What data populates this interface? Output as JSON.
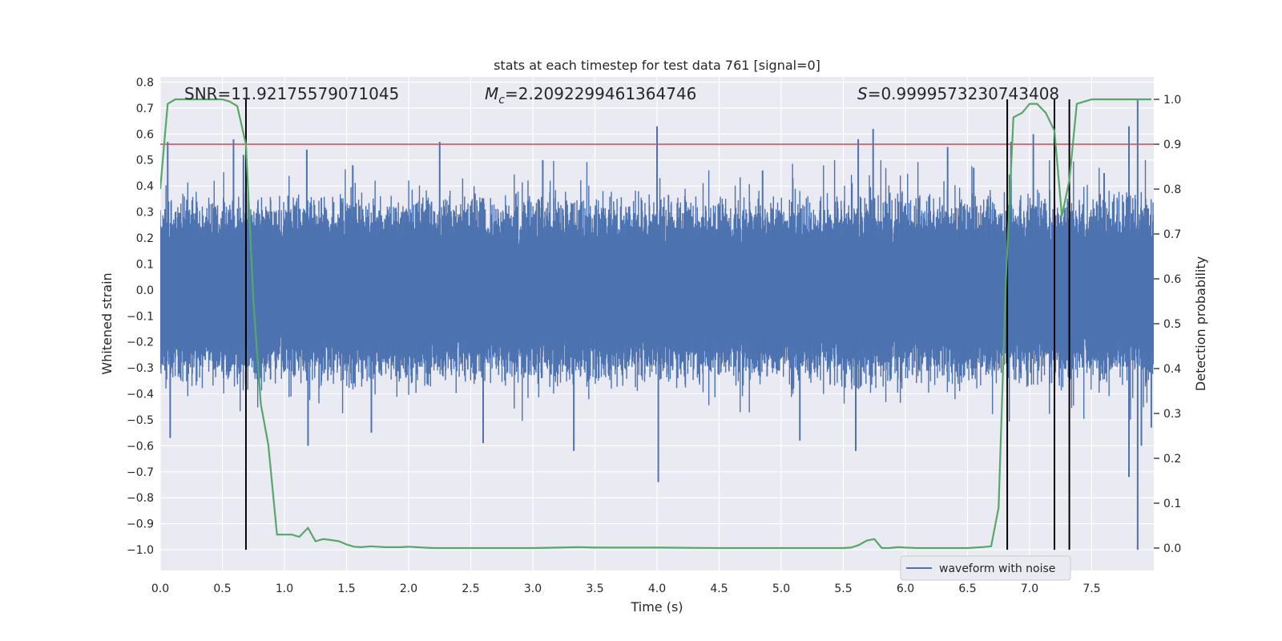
{
  "chart_data": {
    "type": "line",
    "title": "stats at each timestep for test data 761 [signal=0]",
    "xlabel": "Time (s)",
    "ylabel_left": "Whitened strain",
    "ylabel_right": "Detection probability",
    "xlim": [
      0.0,
      8.0
    ],
    "ylim_left": [
      -1.08,
      0.82
    ],
    "ylim_right": [
      -0.05,
      1.05
    ],
    "x_ticks": [
      0.0,
      0.5,
      1.0,
      1.5,
      2.0,
      2.5,
      3.0,
      3.5,
      4.0,
      4.5,
      5.0,
      5.5,
      6.0,
      6.5,
      7.0,
      7.5
    ],
    "x_tick_labels": [
      "0.0",
      "0.5",
      "1.0",
      "1.5",
      "2.0",
      "2.5",
      "3.0",
      "3.5",
      "4.0",
      "4.5",
      "5.0",
      "5.5",
      "6.0",
      "6.5",
      "7.0",
      "7.5"
    ],
    "y_left_ticks": [
      0.8,
      0.7,
      0.6,
      0.5,
      0.4,
      0.3,
      0.2,
      0.1,
      0.0,
      -0.1,
      -0.2,
      -0.3,
      -0.4,
      -0.5,
      -0.6,
      -0.7,
      -0.8,
      -0.9,
      -1.0
    ],
    "y_left_tick_labels": [
      "0.8",
      "0.7",
      "0.6",
      "0.5",
      "0.4",
      "0.3",
      "0.2",
      "0.1",
      "0.0",
      "−0.1",
      "−0.2",
      "−0.3",
      "−0.4",
      "−0.5",
      "−0.6",
      "−0.7",
      "−0.8",
      "−0.9",
      "−1.0"
    ],
    "y_right_ticks": [
      1.0,
      0.9,
      0.8,
      0.7,
      0.6,
      0.5,
      0.4,
      0.3,
      0.2,
      0.1,
      0.0
    ],
    "y_right_tick_labels": [
      "1.0",
      "0.9",
      "0.8",
      "0.7",
      "0.6",
      "0.5",
      "0.4",
      "0.3",
      "0.2",
      "0.1",
      "0.0"
    ],
    "grid": true,
    "background": "#eaeaf2",
    "annotations": {
      "snr": "SNR=11.92175579071045",
      "mc": "=2.2092299461364746",
      "s": "=0.9999573230743408"
    },
    "legend": {
      "label": "waveform with noise",
      "placement": "lower-right"
    },
    "threshold": {
      "axis": "right",
      "value": 0.9,
      "color": "#c44e52"
    },
    "vlines": {
      "x": [
        0.69,
        6.82,
        7.2,
        7.32
      ],
      "from_left": -1.0,
      "to_right": 1.0,
      "color": "#000000"
    },
    "waveform": {
      "name": "waveform with noise",
      "color": "#4c72b0",
      "x_range": [
        0.0,
        8.0
      ],
      "typical_amplitude": 0.25,
      "spikes": [
        {
          "x": 0.06,
          "y": 0.57
        },
        {
          "x": 0.59,
          "y": 0.58
        },
        {
          "x": 0.67,
          "y": 0.52
        },
        {
          "x": 1.18,
          "y": 0.54
        },
        {
          "x": 1.55,
          "y": 0.48
        },
        {
          "x": 2.25,
          "y": 0.57
        },
        {
          "x": 4.0,
          "y": 0.63
        },
        {
          "x": 5.62,
          "y": 0.58
        },
        {
          "x": 5.74,
          "y": 0.62
        },
        {
          "x": 6.34,
          "y": 0.55
        },
        {
          "x": 6.85,
          "y": 0.57
        },
        {
          "x": 7.03,
          "y": 0.6
        },
        {
          "x": 7.8,
          "y": 0.63
        },
        {
          "x": 7.87,
          "y": 0.73
        },
        {
          "x": 7.8,
          "y": -0.72
        },
        {
          "x": 0.08,
          "y": -0.57
        },
        {
          "x": 1.19,
          "y": -0.6
        },
        {
          "x": 2.6,
          "y": -0.59
        },
        {
          "x": 3.33,
          "y": -0.62
        },
        {
          "x": 4.01,
          "y": -0.74
        },
        {
          "x": 5.6,
          "y": -0.62
        },
        {
          "x": 7.87,
          "y": -1.0
        },
        {
          "x": 7.9,
          "y": -0.6
        },
        {
          "x": 1.7,
          "y": -0.55
        },
        {
          "x": 5.15,
          "y": -0.58
        },
        {
          "x": 7.98,
          "y": -0.53
        },
        {
          "x": 3.08,
          "y": 0.5
        },
        {
          "x": 4.85,
          "y": 0.46
        },
        {
          "x": 6.55,
          "y": 0.47
        },
        {
          "x": 7.6,
          "y": 0.45
        }
      ]
    },
    "detection_probability": {
      "name": "detection probability",
      "color": "#55a868",
      "axis": "right",
      "x": [
        0.0,
        0.06,
        0.12,
        0.2,
        0.3,
        0.4,
        0.5,
        0.56,
        0.62,
        0.69,
        0.75,
        0.81,
        0.87,
        0.94,
        1.0,
        1.06,
        1.12,
        1.19,
        1.25,
        1.31,
        1.37,
        1.44,
        1.5,
        1.56,
        1.62,
        1.69,
        1.75,
        1.81,
        1.87,
        1.94,
        2.0,
        2.06,
        2.12,
        2.2,
        2.5,
        3.0,
        3.37,
        3.5,
        3.7,
        4.0,
        4.5,
        5.0,
        5.5,
        5.56,
        5.62,
        5.69,
        5.75,
        5.81,
        5.87,
        5.94,
        6.0,
        6.1,
        6.2,
        6.3,
        6.4,
        6.5,
        6.56,
        6.62,
        6.69,
        6.75,
        6.81,
        6.87,
        6.94,
        7.0,
        7.06,
        7.13,
        7.2,
        7.26,
        7.32,
        7.38,
        7.5,
        7.7,
        7.98
      ],
      "y": [
        0.8,
        0.99,
        1.0,
        1.0,
        1.0,
        1.0,
        1.0,
        0.995,
        0.985,
        0.9,
        0.55,
        0.32,
        0.23,
        0.03,
        0.03,
        0.03,
        0.025,
        0.045,
        0.015,
        0.02,
        0.018,
        0.015,
        0.008,
        0.003,
        0.002,
        0.004,
        0.003,
        0.002,
        0.002,
        0.002,
        0.003,
        0.002,
        0.001,
        0.0,
        0.0,
        0.0,
        0.002,
        0.001,
        0.001,
        0.001,
        0.0,
        0.0,
        0.0,
        0.001,
        0.006,
        0.017,
        0.02,
        0.0,
        0.0,
        0.002,
        0.001,
        0.0,
        0.0,
        0.0,
        0.0,
        0.0,
        0.001,
        0.002,
        0.004,
        0.09,
        0.6,
        0.96,
        0.97,
        0.99,
        0.99,
        0.97,
        0.93,
        0.74,
        0.82,
        0.99,
        1.0,
        1.0,
        1.0
      ]
    }
  }
}
